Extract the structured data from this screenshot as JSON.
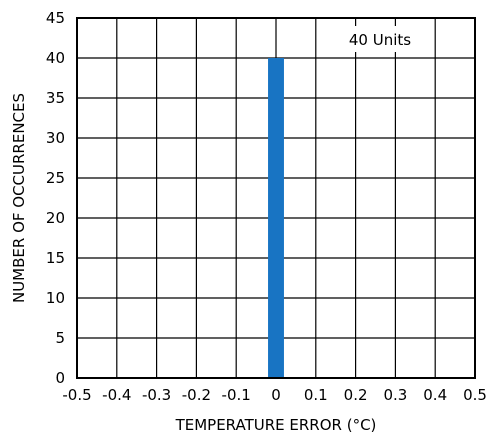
{
  "chart_data": {
    "type": "bar",
    "title": "",
    "xlabel": "TEMPERATURE ERROR (°C)",
    "ylabel": "NUMBER OF OCCURRENCES",
    "x_ticks": [
      "-0.5",
      "-0.4",
      "-0.3",
      "-0.2",
      "-0.1",
      "0",
      "0.1",
      "0.2",
      "0.3",
      "0.4",
      "0.5"
    ],
    "y_ticks": [
      "0",
      "5",
      "10",
      "15",
      "20",
      "25",
      "30",
      "35",
      "40",
      "45"
    ],
    "xlim": [
      -0.5,
      0.5
    ],
    "ylim": [
      0,
      45
    ],
    "grid": true,
    "bars": [
      {
        "x_start": -0.02,
        "x_end": 0.02,
        "value": 40
      }
    ],
    "bar_color": "#1874c3",
    "annotation": "40 Units"
  }
}
